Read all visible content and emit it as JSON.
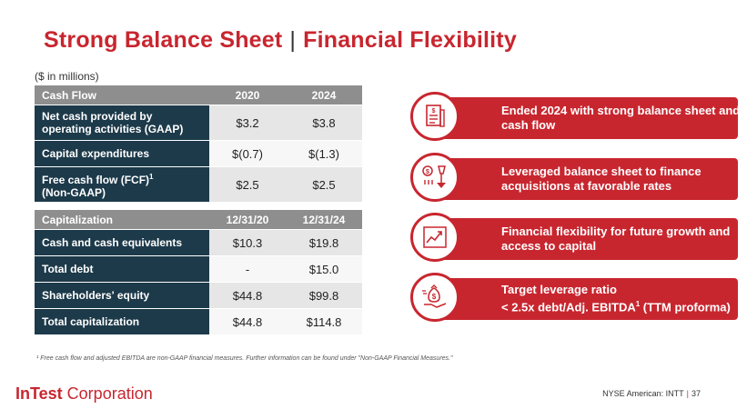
{
  "title": {
    "part1": "Strong Balance Sheet",
    "separator": "|",
    "part2": "Financial Flexibility"
  },
  "units": "($ in millions)",
  "cash_flow": {
    "header": [
      "Cash Flow",
      "2020",
      "2024"
    ],
    "rows": [
      {
        "label": "Net cash provided by operating activities (GAAP)",
        "v2020": "$3.2",
        "v2024": "$3.8"
      },
      {
        "label": "Capital expenditures",
        "v2020": "$(0.7)",
        "v2024": "$(1.3)"
      },
      {
        "label": "Free cash flow (FCF)",
        "label_sup": "1",
        "label2": "(Non-GAAP)",
        "v2020": "$2.5",
        "v2024": "$2.5"
      }
    ]
  },
  "capitalization": {
    "header": [
      "Capitalization",
      "12/31/20",
      "12/31/24"
    ],
    "rows": [
      {
        "label": "Cash and cash equivalents",
        "v2020": "$10.3",
        "v2024": "$19.8"
      },
      {
        "label": "Total debt",
        "v2020": "-",
        "v2024": "$15.0"
      },
      {
        "label": "Shareholders' equity",
        "v2020": "$44.8",
        "v2024": "$99.8"
      },
      {
        "label": "Total capitalization",
        "v2020": "$44.8",
        "v2024": "$114.8"
      }
    ]
  },
  "bullets": [
    {
      "text": "Ended 2024 with strong balance sheet and cash flow",
      "icon": "document-icon"
    },
    {
      "text": "Leveraged balance sheet to finance acquisitions at favorable rates",
      "icon": "finance-icon"
    },
    {
      "text": "Financial flexibility for future growth and access to capital",
      "icon": "growth-chart-icon"
    },
    {
      "text_a": "Target leverage ratio",
      "text_b": "< 2.5x debt/Adj. EBITDA",
      "text_sup": "1",
      "text_c": " (TTM proforma)",
      "icon": "money-hand-icon"
    }
  ],
  "footnote": "¹ Free cash flow and adjusted EBITDA are non-GAAP financial measures. Further information can be found under \"Non-GAAP Financial Measures.\"",
  "logo": {
    "bold": "InTest",
    "rest": " Corporation"
  },
  "page_info": {
    "exchange": "NYSE American: INTT",
    "separator": "|",
    "page": "37"
  },
  "colors": {
    "accent": "#c8262f",
    "navy": "#1d3a4a",
    "header_gray": "#8e8e8e"
  }
}
